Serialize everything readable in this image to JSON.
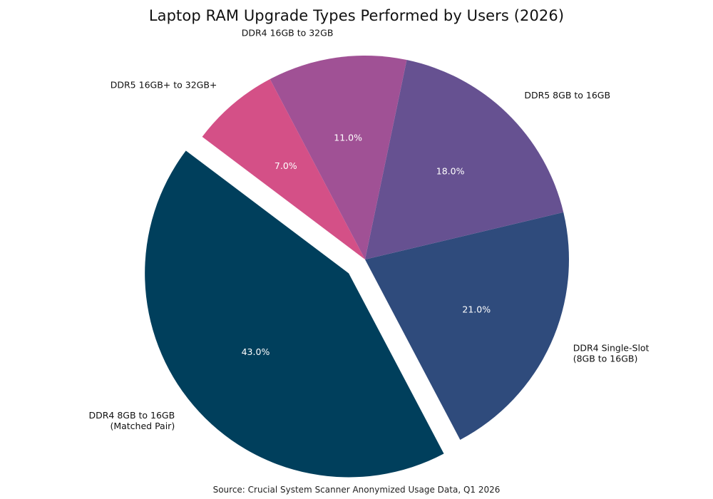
{
  "chart_data": {
    "type": "pie",
    "title": "Laptop RAM Upgrade Types Performed by Users (2026)",
    "source": "Source: Crucial System Scanner Anonymized Usage Data, Q1 2026",
    "start_angle_deg": 143,
    "direction": "counterclockwise",
    "exploded_slice": "DDR4 8GB to 16GB (Matched Pair)",
    "slices": [
      {
        "label_lines": [
          "DDR4 8GB to 16GB",
          "(Matched Pair)"
        ],
        "value": 43.0,
        "pct_label": "43.0%",
        "color": "#003f5c",
        "explode": true
      },
      {
        "label_lines": [
          "DDR4 Single-Slot",
          "(8GB to 16GB)"
        ],
        "value": 21.0,
        "pct_label": "21.0%",
        "color": "#2f4b7c",
        "explode": false
      },
      {
        "label_lines": [
          "DDR5 8GB to 16GB"
        ],
        "value": 18.0,
        "pct_label": "18.0%",
        "color": "#665191",
        "explode": false
      },
      {
        "label_lines": [
          "DDR4 16GB to 32GB"
        ],
        "value": 11.0,
        "pct_label": "11.0%",
        "color": "#a05195",
        "explode": false
      },
      {
        "label_lines": [
          "DDR5 16GB+ to 32GB+"
        ],
        "value": 7.0,
        "pct_label": "7.0%",
        "color": "#d45087",
        "explode": false
      }
    ]
  }
}
